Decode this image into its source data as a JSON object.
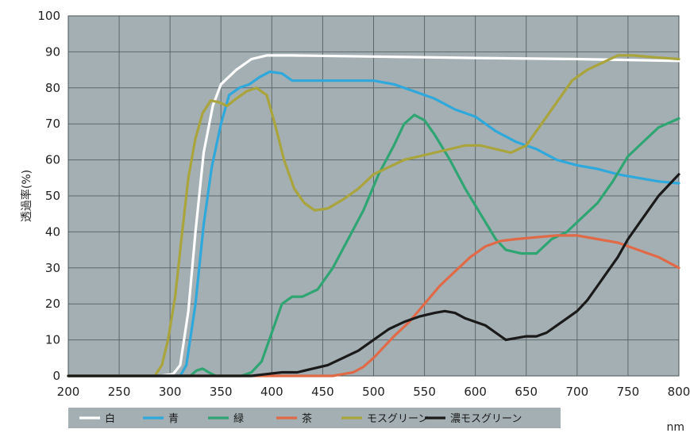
{
  "chart_data": {
    "type": "line",
    "ylabel": "透過率(%)",
    "x_unit": "nm",
    "xlim": [
      200,
      800
    ],
    "ylim": [
      0,
      100
    ],
    "x_ticks": [
      200,
      250,
      300,
      350,
      400,
      450,
      500,
      550,
      600,
      650,
      700,
      750,
      800
    ],
    "y_ticks": [
      0,
      10,
      20,
      30,
      40,
      50,
      60,
      70,
      80,
      90,
      100
    ],
    "grid": true,
    "legend_position": "bottom",
    "plot_background": "#a3afb2",
    "grid_color": "#5d686b",
    "series": [
      {
        "name": "白",
        "color": "#ffffff",
        "points": [
          [
            200,
            0
          ],
          [
            290,
            0
          ],
          [
            303,
            0.5
          ],
          [
            310,
            3
          ],
          [
            318,
            18
          ],
          [
            325,
            40
          ],
          [
            333,
            62
          ],
          [
            342,
            75
          ],
          [
            350,
            81
          ],
          [
            365,
            85
          ],
          [
            380,
            88
          ],
          [
            395,
            89
          ],
          [
            420,
            89
          ],
          [
            500,
            88.7
          ],
          [
            600,
            88.3
          ],
          [
            700,
            88
          ],
          [
            800,
            87.5
          ]
        ]
      },
      {
        "name": "青",
        "color": "#2fa8dc",
        "points": [
          [
            200,
            0
          ],
          [
            300,
            0
          ],
          [
            310,
            0
          ],
          [
            316,
            3
          ],
          [
            325,
            20
          ],
          [
            333,
            42
          ],
          [
            341,
            58
          ],
          [
            350,
            70
          ],
          [
            358,
            78
          ],
          [
            368,
            80
          ],
          [
            378,
            81
          ],
          [
            388,
            83
          ],
          [
            398,
            84.5
          ],
          [
            410,
            84
          ],
          [
            420,
            82
          ],
          [
            440,
            82
          ],
          [
            470,
            82
          ],
          [
            500,
            82
          ],
          [
            520,
            81
          ],
          [
            540,
            79
          ],
          [
            560,
            77
          ],
          [
            580,
            74
          ],
          [
            600,
            72
          ],
          [
            620,
            68
          ],
          [
            640,
            65
          ],
          [
            660,
            63
          ],
          [
            680,
            60
          ],
          [
            700,
            58.5
          ],
          [
            720,
            57.5
          ],
          [
            740,
            56
          ],
          [
            760,
            55
          ],
          [
            780,
            54
          ],
          [
            800,
            53.5
          ]
        ]
      },
      {
        "name": "緑",
        "color": "#2fa574",
        "points": [
          [
            200,
            0
          ],
          [
            320,
            0
          ],
          [
            326,
            1.5
          ],
          [
            332,
            2
          ],
          [
            338,
            1
          ],
          [
            345,
            0
          ],
          [
            370,
            0
          ],
          [
            380,
            1
          ],
          [
            390,
            4
          ],
          [
            400,
            12
          ],
          [
            410,
            20
          ],
          [
            420,
            22
          ],
          [
            430,
            22
          ],
          [
            445,
            24
          ],
          [
            460,
            30
          ],
          [
            475,
            38
          ],
          [
            490,
            46
          ],
          [
            505,
            56
          ],
          [
            520,
            64
          ],
          [
            530,
            70
          ],
          [
            540,
            72.5
          ],
          [
            550,
            71
          ],
          [
            560,
            67
          ],
          [
            575,
            60
          ],
          [
            590,
            52
          ],
          [
            605,
            45
          ],
          [
            620,
            38
          ],
          [
            630,
            35
          ],
          [
            645,
            34
          ],
          [
            660,
            34
          ],
          [
            675,
            38
          ],
          [
            690,
            40
          ],
          [
            705,
            44
          ],
          [
            720,
            48
          ],
          [
            735,
            54
          ],
          [
            750,
            61
          ],
          [
            765,
            65
          ],
          [
            780,
            69
          ],
          [
            800,
            71.5
          ]
        ]
      },
      {
        "name": "茶",
        "color": "#e06a48",
        "points": [
          [
            200,
            0
          ],
          [
            460,
            0
          ],
          [
            470,
            0.5
          ],
          [
            480,
            1
          ],
          [
            490,
            2.5
          ],
          [
            500,
            5
          ],
          [
            510,
            8
          ],
          [
            520,
            11
          ],
          [
            535,
            15
          ],
          [
            550,
            20
          ],
          [
            565,
            25
          ],
          [
            580,
            29
          ],
          [
            595,
            33
          ],
          [
            610,
            36
          ],
          [
            625,
            37.5
          ],
          [
            640,
            38
          ],
          [
            660,
            38.5
          ],
          [
            680,
            39
          ],
          [
            700,
            39
          ],
          [
            720,
            38
          ],
          [
            740,
            37
          ],
          [
            760,
            35
          ],
          [
            780,
            33
          ],
          [
            800,
            30
          ]
        ]
      },
      {
        "name": "モスグリーン",
        "color": "#a9a43c",
        "points": [
          [
            200,
            0
          ],
          [
            285,
            0
          ],
          [
            292,
            3
          ],
          [
            298,
            10
          ],
          [
            305,
            22
          ],
          [
            312,
            40
          ],
          [
            318,
            55
          ],
          [
            325,
            66
          ],
          [
            332,
            73
          ],
          [
            340,
            76.5
          ],
          [
            348,
            76
          ],
          [
            356,
            75
          ],
          [
            365,
            77
          ],
          [
            375,
            79
          ],
          [
            385,
            80
          ],
          [
            395,
            78
          ],
          [
            403,
            70
          ],
          [
            412,
            60
          ],
          [
            422,
            52
          ],
          [
            432,
            48
          ],
          [
            442,
            46
          ],
          [
            455,
            46.5
          ],
          [
            470,
            49
          ],
          [
            485,
            52
          ],
          [
            500,
            56
          ],
          [
            515,
            58
          ],
          [
            530,
            60
          ],
          [
            545,
            61
          ],
          [
            560,
            62
          ],
          [
            575,
            63
          ],
          [
            590,
            64
          ],
          [
            605,
            64
          ],
          [
            620,
            63
          ],
          [
            635,
            62
          ],
          [
            650,
            64
          ],
          [
            665,
            70
          ],
          [
            680,
            76
          ],
          [
            695,
            82
          ],
          [
            710,
            85
          ],
          [
            725,
            87
          ],
          [
            740,
            89
          ],
          [
            755,
            89
          ],
          [
            775,
            88.5
          ],
          [
            800,
            88
          ]
        ]
      },
      {
        "name": "濃モスグリーン",
        "color": "#1a1a1a",
        "points": [
          [
            200,
            0
          ],
          [
            380,
            0
          ],
          [
            395,
            0.5
          ],
          [
            410,
            1
          ],
          [
            425,
            1
          ],
          [
            440,
            2
          ],
          [
            455,
            3
          ],
          [
            470,
            5
          ],
          [
            485,
            7
          ],
          [
            500,
            10
          ],
          [
            515,
            13
          ],
          [
            530,
            15
          ],
          [
            545,
            16.5
          ],
          [
            560,
            17.5
          ],
          [
            570,
            18
          ],
          [
            580,
            17.5
          ],
          [
            590,
            16
          ],
          [
            600,
            15
          ],
          [
            610,
            14
          ],
          [
            620,
            12
          ],
          [
            630,
            10
          ],
          [
            640,
            10.5
          ],
          [
            650,
            11
          ],
          [
            660,
            11
          ],
          [
            670,
            12
          ],
          [
            680,
            14
          ],
          [
            690,
            16
          ],
          [
            700,
            18
          ],
          [
            710,
            21
          ],
          [
            720,
            25
          ],
          [
            730,
            29
          ],
          [
            740,
            33
          ],
          [
            750,
            38
          ],
          [
            760,
            42
          ],
          [
            770,
            46
          ],
          [
            780,
            50
          ],
          [
            790,
            53
          ],
          [
            800,
            56
          ]
        ]
      }
    ]
  }
}
